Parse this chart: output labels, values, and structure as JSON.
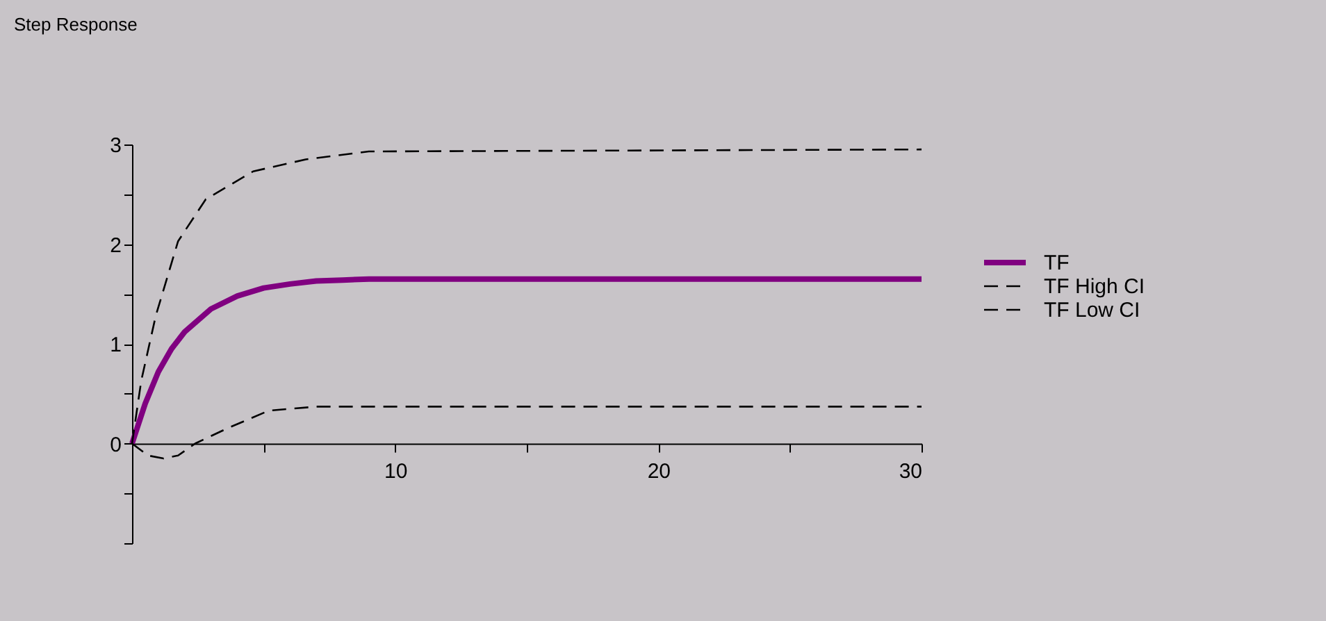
{
  "chart_data": {
    "type": "line",
    "title": "Step Response",
    "xlim": [
      0,
      30
    ],
    "ylim": [
      -1,
      3
    ],
    "xticks": [
      {
        "value": 5,
        "label": null
      },
      10,
      {
        "value": 15,
        "label": null
      },
      20,
      {
        "value": 25,
        "label": null
      },
      30
    ],
    "yticks": [
      {
        "value": -1,
        "label": null
      },
      {
        "value": -0.5,
        "label": null
      },
      0,
      {
        "value": 0.5,
        "label": null
      },
      1,
      {
        "value": 1.5,
        "label": null
      },
      2,
      {
        "value": 2.5,
        "label": null
      },
      3
    ],
    "grid": false,
    "legend": "right",
    "series": [
      {
        "name": "TF",
        "color": "#800080",
        "line_style": "solid",
        "x": [
          0,
          0.5,
          1,
          1.5,
          2,
          3,
          4,
          5,
          6,
          7,
          8,
          9,
          30
        ],
        "values": [
          0,
          0.4,
          0.72,
          0.95,
          1.12,
          1.35,
          1.48,
          1.56,
          1.6,
          1.63,
          1.64,
          1.65,
          1.65
        ]
      },
      {
        "name": "TF High CI",
        "color": "#000000",
        "line_style": "dashed",
        "x": [
          0,
          0.35,
          0.9,
          1.75,
          2.8,
          4.6,
          6.6,
          9,
          30
        ],
        "values": [
          0,
          0.63,
          1.28,
          2.03,
          2.45,
          2.73,
          2.85,
          2.93,
          2.95
        ]
      },
      {
        "name": "TF Low CI",
        "color": "#000000",
        "line_style": "dashed",
        "x": [
          0,
          0.6,
          1.2,
          1.75,
          2.4,
          3.6,
          5.2,
          7,
          30
        ],
        "values": [
          0,
          -0.12,
          -0.15,
          -0.12,
          0,
          0.15,
          0.33,
          0.37,
          0.37
        ]
      }
    ]
  }
}
